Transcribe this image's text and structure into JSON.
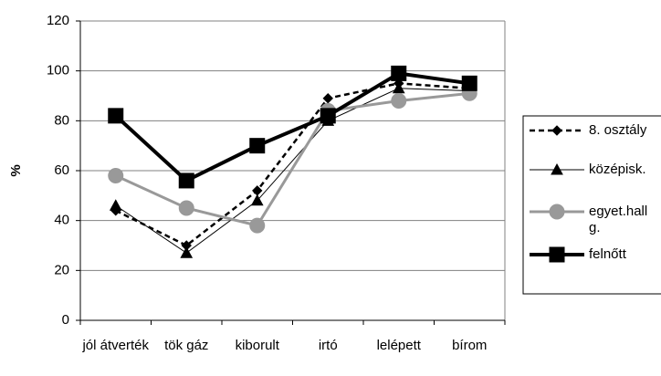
{
  "chart_data": {
    "type": "line",
    "y_label": "%",
    "categories": [
      "jól átverték",
      "tök gáz",
      "kiborult",
      "irtó",
      "lelépett",
      "bírom"
    ],
    "series": [
      {
        "name": "8. osztály",
        "color": "#000000",
        "style": "dashed",
        "marker": "diamond",
        "width": 2.5,
        "values": [
          44,
          30,
          52,
          89,
          95,
          93
        ]
      },
      {
        "name": "középisk.",
        "color": "#000000",
        "style": "solid",
        "marker": "triangle",
        "width": 1,
        "values": [
          46,
          27,
          48,
          80,
          93,
          92
        ]
      },
      {
        "name": "egyet.hallg.",
        "color": "#999999",
        "style": "solid",
        "marker": "circle",
        "width": 3,
        "values": [
          58,
          45,
          38,
          84,
          88,
          91
        ]
      },
      {
        "name": "felnőtt",
        "color": "#000000",
        "style": "solid",
        "marker": "square",
        "width": 4,
        "values": [
          82,
          56,
          70,
          82,
          99,
          95
        ]
      }
    ],
    "ylim": [
      0,
      120
    ],
    "yticks": [
      0,
      20,
      40,
      60,
      80,
      100,
      120
    ],
    "grid": true,
    "legend": "right"
  }
}
